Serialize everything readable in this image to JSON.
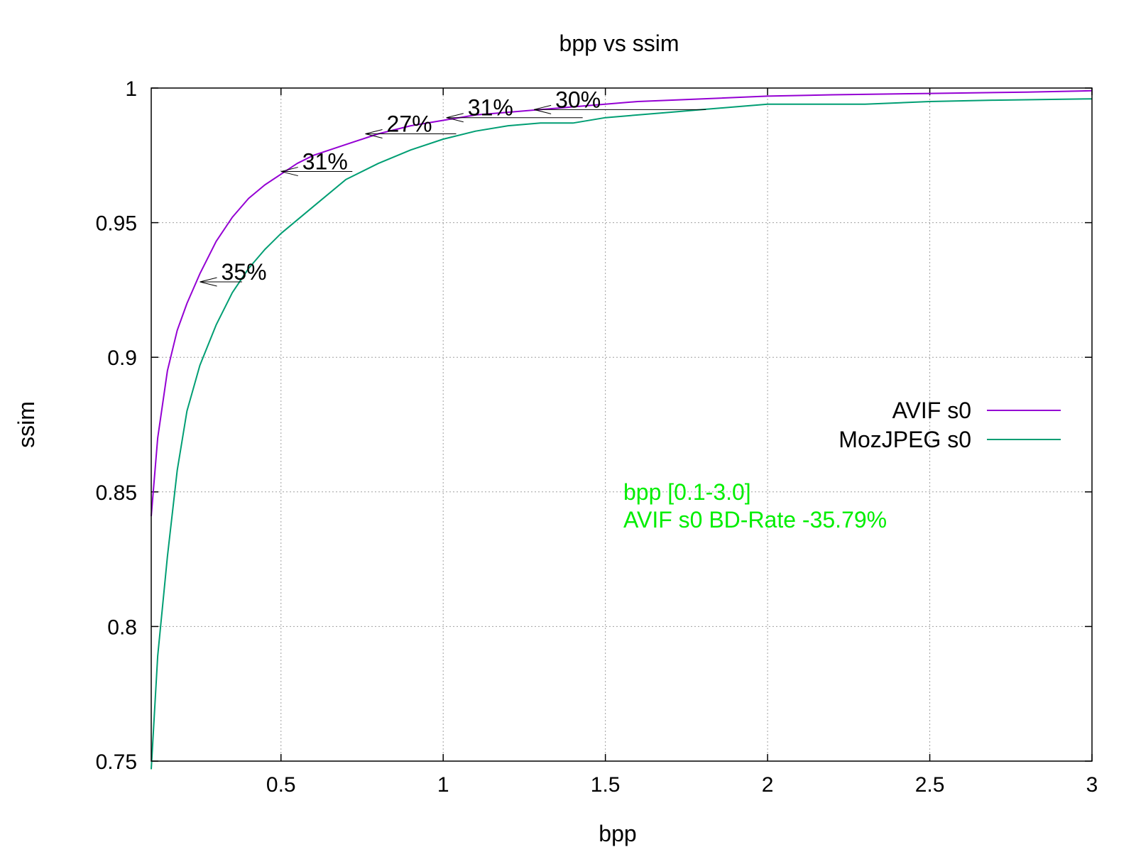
{
  "chart_data": {
    "type": "line",
    "title": "bpp vs ssim",
    "xlabel": "bpp",
    "ylabel": "ssim",
    "xlim": [
      0.1,
      3.0
    ],
    "ylim": [
      0.75,
      1.0
    ],
    "xticks": [
      0.5,
      1,
      1.5,
      2,
      2.5,
      3
    ],
    "yticks": [
      0.75,
      0.8,
      0.85,
      0.9,
      0.95,
      1
    ],
    "grid": true,
    "legend_position": "right",
    "series": [
      {
        "name": "AVIF s0",
        "color": "#9400d3",
        "x": [
          0.1,
          0.12,
          0.15,
          0.18,
          0.21,
          0.25,
          0.3,
          0.35,
          0.4,
          0.45,
          0.5,
          0.55,
          0.6,
          0.7,
          0.8,
          0.9,
          1.0,
          1.1,
          1.2,
          1.4,
          1.6,
          1.8,
          2.0,
          2.2,
          2.5,
          2.8,
          3.0
        ],
        "y": [
          0.841,
          0.87,
          0.895,
          0.91,
          0.92,
          0.931,
          0.943,
          0.952,
          0.959,
          0.964,
          0.968,
          0.972,
          0.975,
          0.979,
          0.983,
          0.986,
          0.988,
          0.99,
          0.991,
          0.993,
          0.995,
          0.996,
          0.997,
          0.9975,
          0.998,
          0.9985,
          0.999
        ]
      },
      {
        "name": "MozJPEG s0",
        "color": "#009e73",
        "x": [
          0.1,
          0.12,
          0.15,
          0.18,
          0.21,
          0.25,
          0.3,
          0.35,
          0.4,
          0.45,
          0.5,
          0.55,
          0.6,
          0.7,
          0.8,
          0.9,
          1.0,
          1.1,
          1.2,
          1.3,
          1.4,
          1.5,
          1.7,
          1.8,
          1.9,
          2.0,
          2.3,
          2.5,
          2.7,
          3.0
        ],
        "y": [
          0.747,
          0.789,
          0.826,
          0.858,
          0.88,
          0.897,
          0.912,
          0.924,
          0.933,
          0.94,
          0.946,
          0.951,
          0.956,
          0.966,
          0.972,
          0.977,
          0.981,
          0.984,
          0.986,
          0.987,
          0.987,
          0.989,
          0.991,
          0.992,
          0.993,
          0.994,
          0.994,
          0.995,
          0.9955,
          0.996
        ]
      }
    ],
    "annotations": [
      {
        "text": "35%",
        "x_from": 0.38,
        "x_to": 0.25,
        "y": 0.928
      },
      {
        "text": "31%",
        "x_from": 0.72,
        "x_to": 0.5,
        "y": 0.969
      },
      {
        "text": "27%",
        "x_from": 1.04,
        "x_to": 0.76,
        "y": 0.983
      },
      {
        "text": "31%",
        "x_from": 1.43,
        "x_to": 1.01,
        "y": 0.989
      },
      {
        "text": "30%",
        "x_from": 1.81,
        "x_to": 1.28,
        "y": 0.992
      }
    ],
    "notes": {
      "range": "bpp [0.1-3.0]",
      "bdrate": "AVIF s0 BD-Rate -35.79%",
      "color": "#00ee00"
    }
  }
}
